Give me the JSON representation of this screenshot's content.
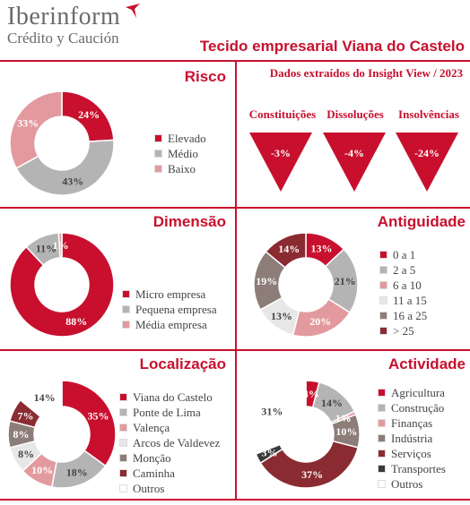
{
  "header": {
    "brand": "Iberinform",
    "brand_sub": "Crédito y Caución",
    "title": "Tecido empresarial Viana do Castelo"
  },
  "colors": {
    "red": "#c8102e",
    "grey": "#b4b4b4",
    "pink": "#e39a9e",
    "lightgrey": "#e7e7e7",
    "taupe": "#8c7d78",
    "maroon": "#8a2b31",
    "darkgrey": "#3a3a3a",
    "white": "#ffffff"
  },
  "sections": {
    "risco": "Risco",
    "dimensao": "Dimensão",
    "antiguidade": "Antiguidade",
    "localizacao": "Localização",
    "actividade": "Actividade"
  },
  "note": "Dados extraídos do Insight View / 2023",
  "indicators": [
    {
      "label": "Constituições",
      "value": "-3%"
    },
    {
      "label": "Dissoluções",
      "value": "-4%"
    },
    {
      "label": "Insolvências",
      "value": "-24%"
    }
  ],
  "chart_data": [
    {
      "id": "risco",
      "type": "pie",
      "title": "Risco",
      "categories": [
        "Elevado",
        "Médio",
        "Baixo"
      ],
      "values": [
        24,
        43,
        33
      ],
      "labels": [
        "24%",
        "43%",
        "33%"
      ],
      "colors": [
        "#c8102e",
        "#b4b4b4",
        "#e39a9e"
      ]
    },
    {
      "id": "dimensao",
      "type": "pie",
      "title": "Dimensão",
      "categories": [
        "Micro empresa",
        "Pequena empresa",
        "Média empresa"
      ],
      "values": [
        88,
        11,
        1
      ],
      "labels": [
        "88%",
        "11%",
        "1%"
      ],
      "colors": [
        "#c8102e",
        "#b4b4b4",
        "#e39a9e"
      ]
    },
    {
      "id": "antiguidade",
      "type": "pie",
      "title": "Antiguidade",
      "categories": [
        "0 a 1",
        "2 a 5",
        "6 a 10",
        "11 a 15",
        "16 a 25",
        "> 25"
      ],
      "values": [
        13,
        21,
        20,
        13,
        19,
        14
      ],
      "labels": [
        "13%",
        "21%",
        "20%",
        "13%",
        "19%",
        "14%"
      ],
      "colors": [
        "#c8102e",
        "#b4b4b4",
        "#e39a9e",
        "#e7e7e7",
        "#8c7d78",
        "#8a2b31"
      ]
    },
    {
      "id": "localizacao",
      "type": "pie",
      "title": "Localização",
      "categories": [
        "Viana do Castelo",
        "Ponte de Lima",
        "Valença",
        "Arcos de Valdevez",
        "Monção",
        "Caminha",
        "Outros"
      ],
      "values": [
        35,
        18,
        10,
        8,
        8,
        7,
        14
      ],
      "labels": [
        "35%",
        "18%",
        "10%",
        "8%",
        "8%",
        "7%",
        "14%"
      ],
      "colors": [
        "#c8102e",
        "#b4b4b4",
        "#e39a9e",
        "#e7e7e7",
        "#8c7d78",
        "#8a2b31",
        "#ffffff"
      ]
    },
    {
      "id": "actividade",
      "type": "pie",
      "title": "Actividade",
      "categories": [
        "Agricultura",
        "Construção",
        "Finanças",
        "Indústria",
        "Serviços",
        "Transportes",
        "Outros"
      ],
      "values": [
        4,
        14,
        1,
        10,
        37,
        3,
        31
      ],
      "labels": [
        "4%",
        "14%",
        "1%",
        "10%",
        "37%",
        "3%",
        "31%"
      ],
      "colors": [
        "#c8102e",
        "#b4b4b4",
        "#e39a9e",
        "#8c7d78",
        "#8a2b31",
        "#3a3a3a",
        "#ffffff"
      ]
    }
  ]
}
